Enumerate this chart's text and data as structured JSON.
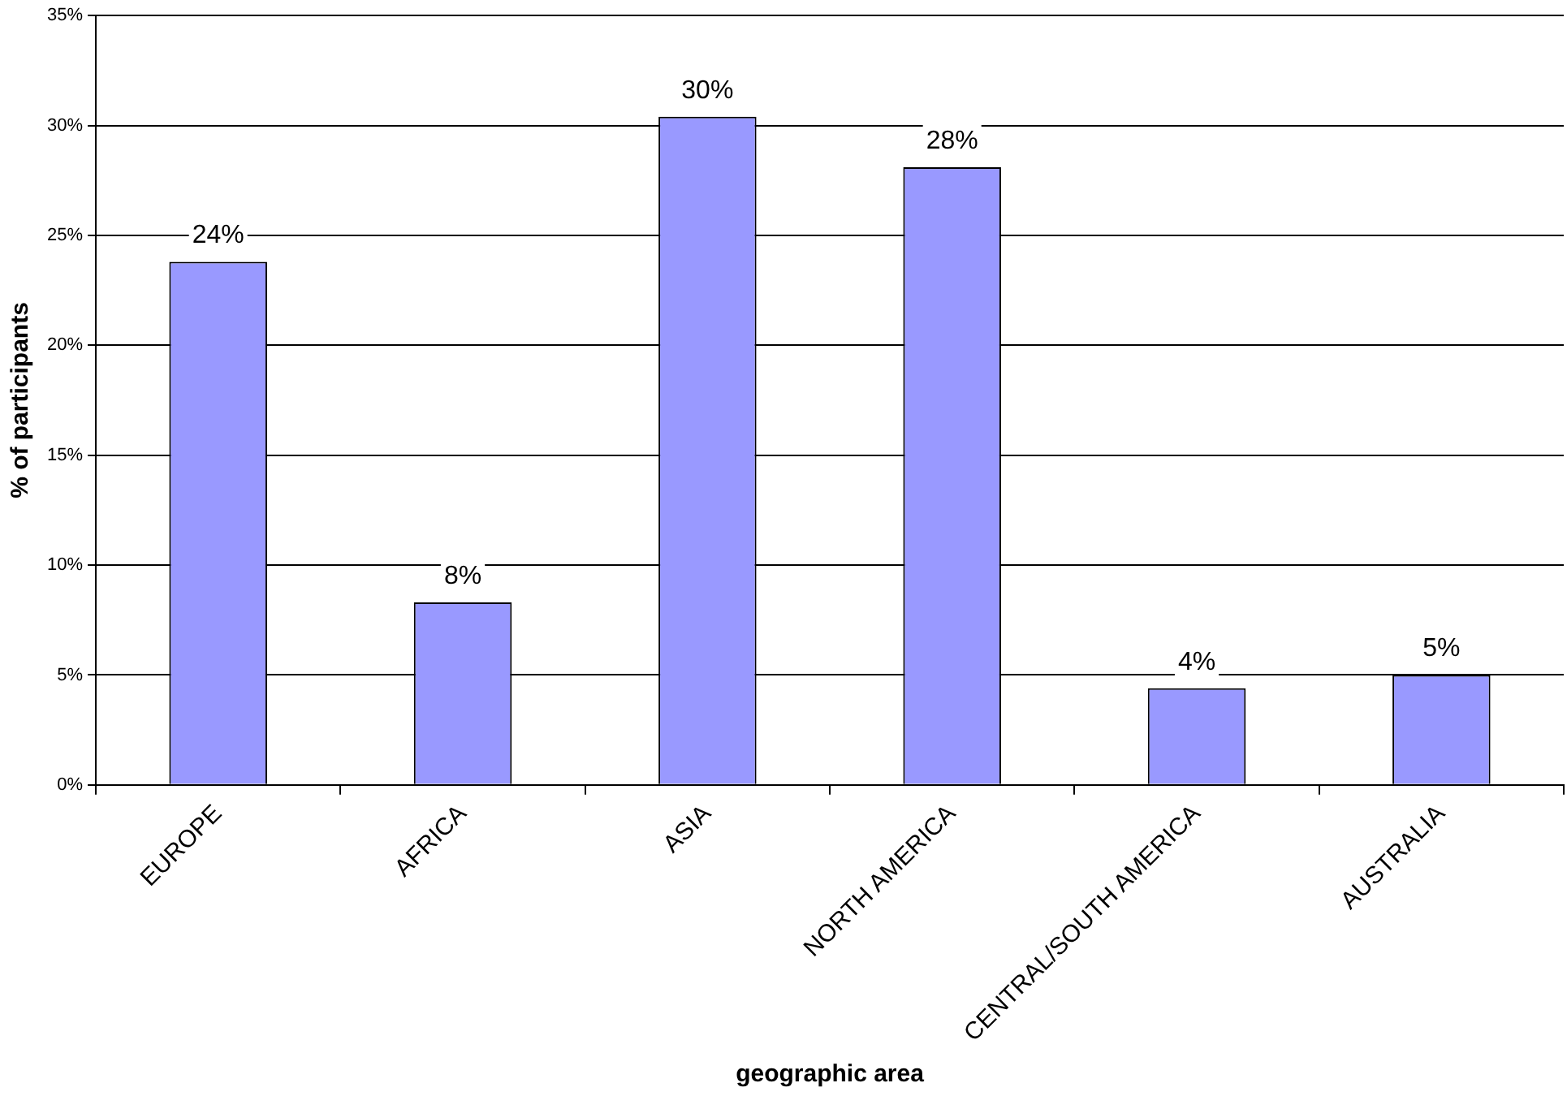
{
  "chart_data": {
    "type": "bar",
    "xlabel": "geographic area",
    "ylabel": "% of participants",
    "categories": [
      "EUROPE",
      "AFRICA",
      "ASIA",
      "NORTH AMERICA",
      "CENTRAL/SOUTH AMERICA",
      "AUSTRALIA"
    ],
    "values": [
      23.8,
      8.3,
      30.4,
      28.1,
      4.4,
      5.0
    ],
    "value_labels": [
      "24%",
      "8%",
      "30%",
      "28%",
      "4%",
      "5%"
    ],
    "color": "#9999ff",
    "ylim": [
      0,
      35
    ],
    "yticks": [
      {
        "value": 0,
        "label": "0%"
      },
      {
        "value": 5,
        "label": "5%"
      },
      {
        "value": 10,
        "label": "10%"
      },
      {
        "value": 15,
        "label": "15%"
      },
      {
        "value": 20,
        "label": "20%"
      },
      {
        "value": 25,
        "label": "25%"
      },
      {
        "value": 30,
        "label": "30%"
      },
      {
        "value": 35,
        "label": "35%"
      }
    ],
    "grid": "y",
    "legend": false
  }
}
